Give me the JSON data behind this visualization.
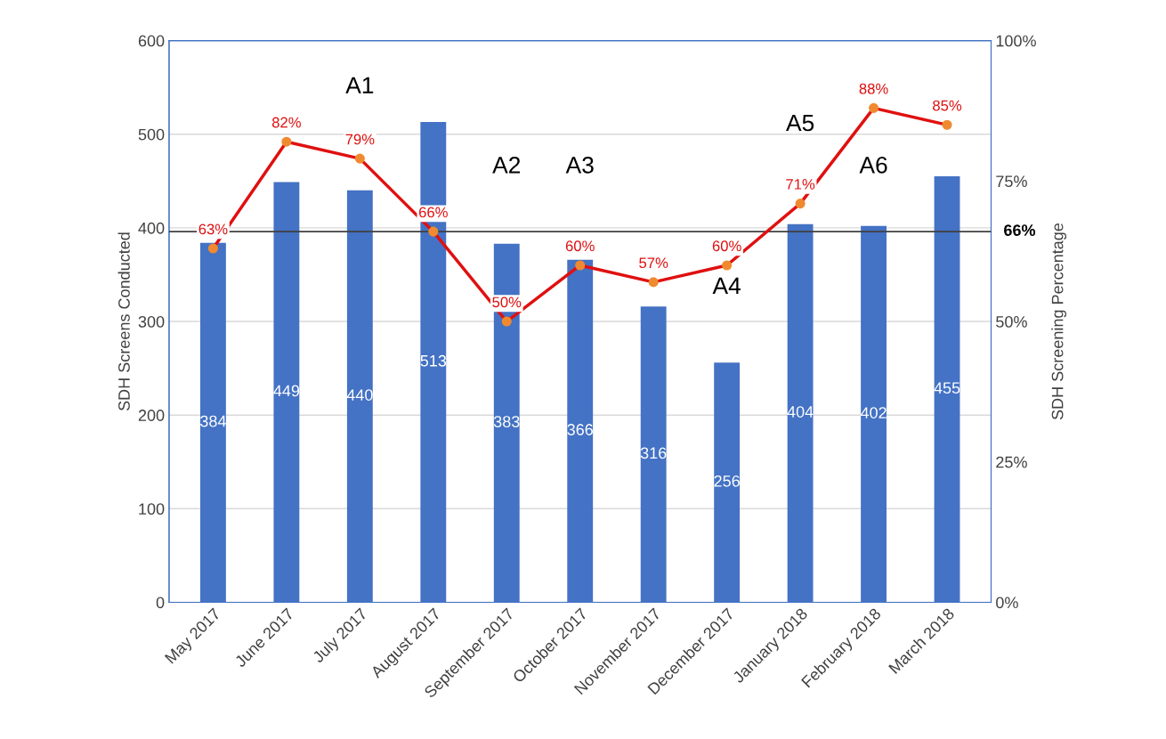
{
  "chart_data": {
    "type": "bar",
    "categories": [
      "May 2017",
      "June 2017",
      "July 2017",
      "August 2017",
      "September 2017",
      "October 2017",
      "November 2017",
      "December 2017",
      "January 2018",
      "February 2018",
      "March 2018"
    ],
    "series": [
      {
        "color": "#4472c4",
        "values": [
          384,
          449,
          440,
          513,
          383,
          366,
          316,
          256,
          404,
          402,
          455
        ],
        "data_labels": true
      },
      {
        "type": "line",
        "axis": "y2",
        "color": "#e01010",
        "values": [
          63,
          82,
          79,
          66,
          50,
          60,
          57,
          60,
          71,
          88,
          85
        ],
        "value_labels": [
          "63%",
          "82%",
          "79%",
          "66%",
          "50%",
          "60%",
          "57%",
          "60%",
          "71%",
          "88%",
          "85%"
        ],
        "marker": "circle",
        "line_style": "solid"
      }
    ],
    "ylabel": "SDH Screens Conducted",
    "y2label": "SDH Screening Percentage",
    "ylim": [
      0,
      600
    ],
    "yticks": [
      0,
      100,
      200,
      300,
      400,
      500,
      600
    ],
    "y2lim": [
      0,
      100
    ],
    "y2ticks": [
      {
        "value": 0,
        "label": "0%"
      },
      {
        "value": 25,
        "label": "25%"
      },
      {
        "value": 50,
        "label": "50%"
      },
      {
        "value": 75,
        "label": "75%"
      },
      {
        "value": 100,
        "label": "100%"
      }
    ],
    "ref_lines": [
      {
        "axis": "y2",
        "value": 66,
        "label": "66%",
        "color": "#404040"
      }
    ],
    "annotations": [
      "A1",
      "A2",
      "A3",
      "A4",
      "A5",
      "A6"
    ],
    "grid": "y",
    "legend": false
  }
}
